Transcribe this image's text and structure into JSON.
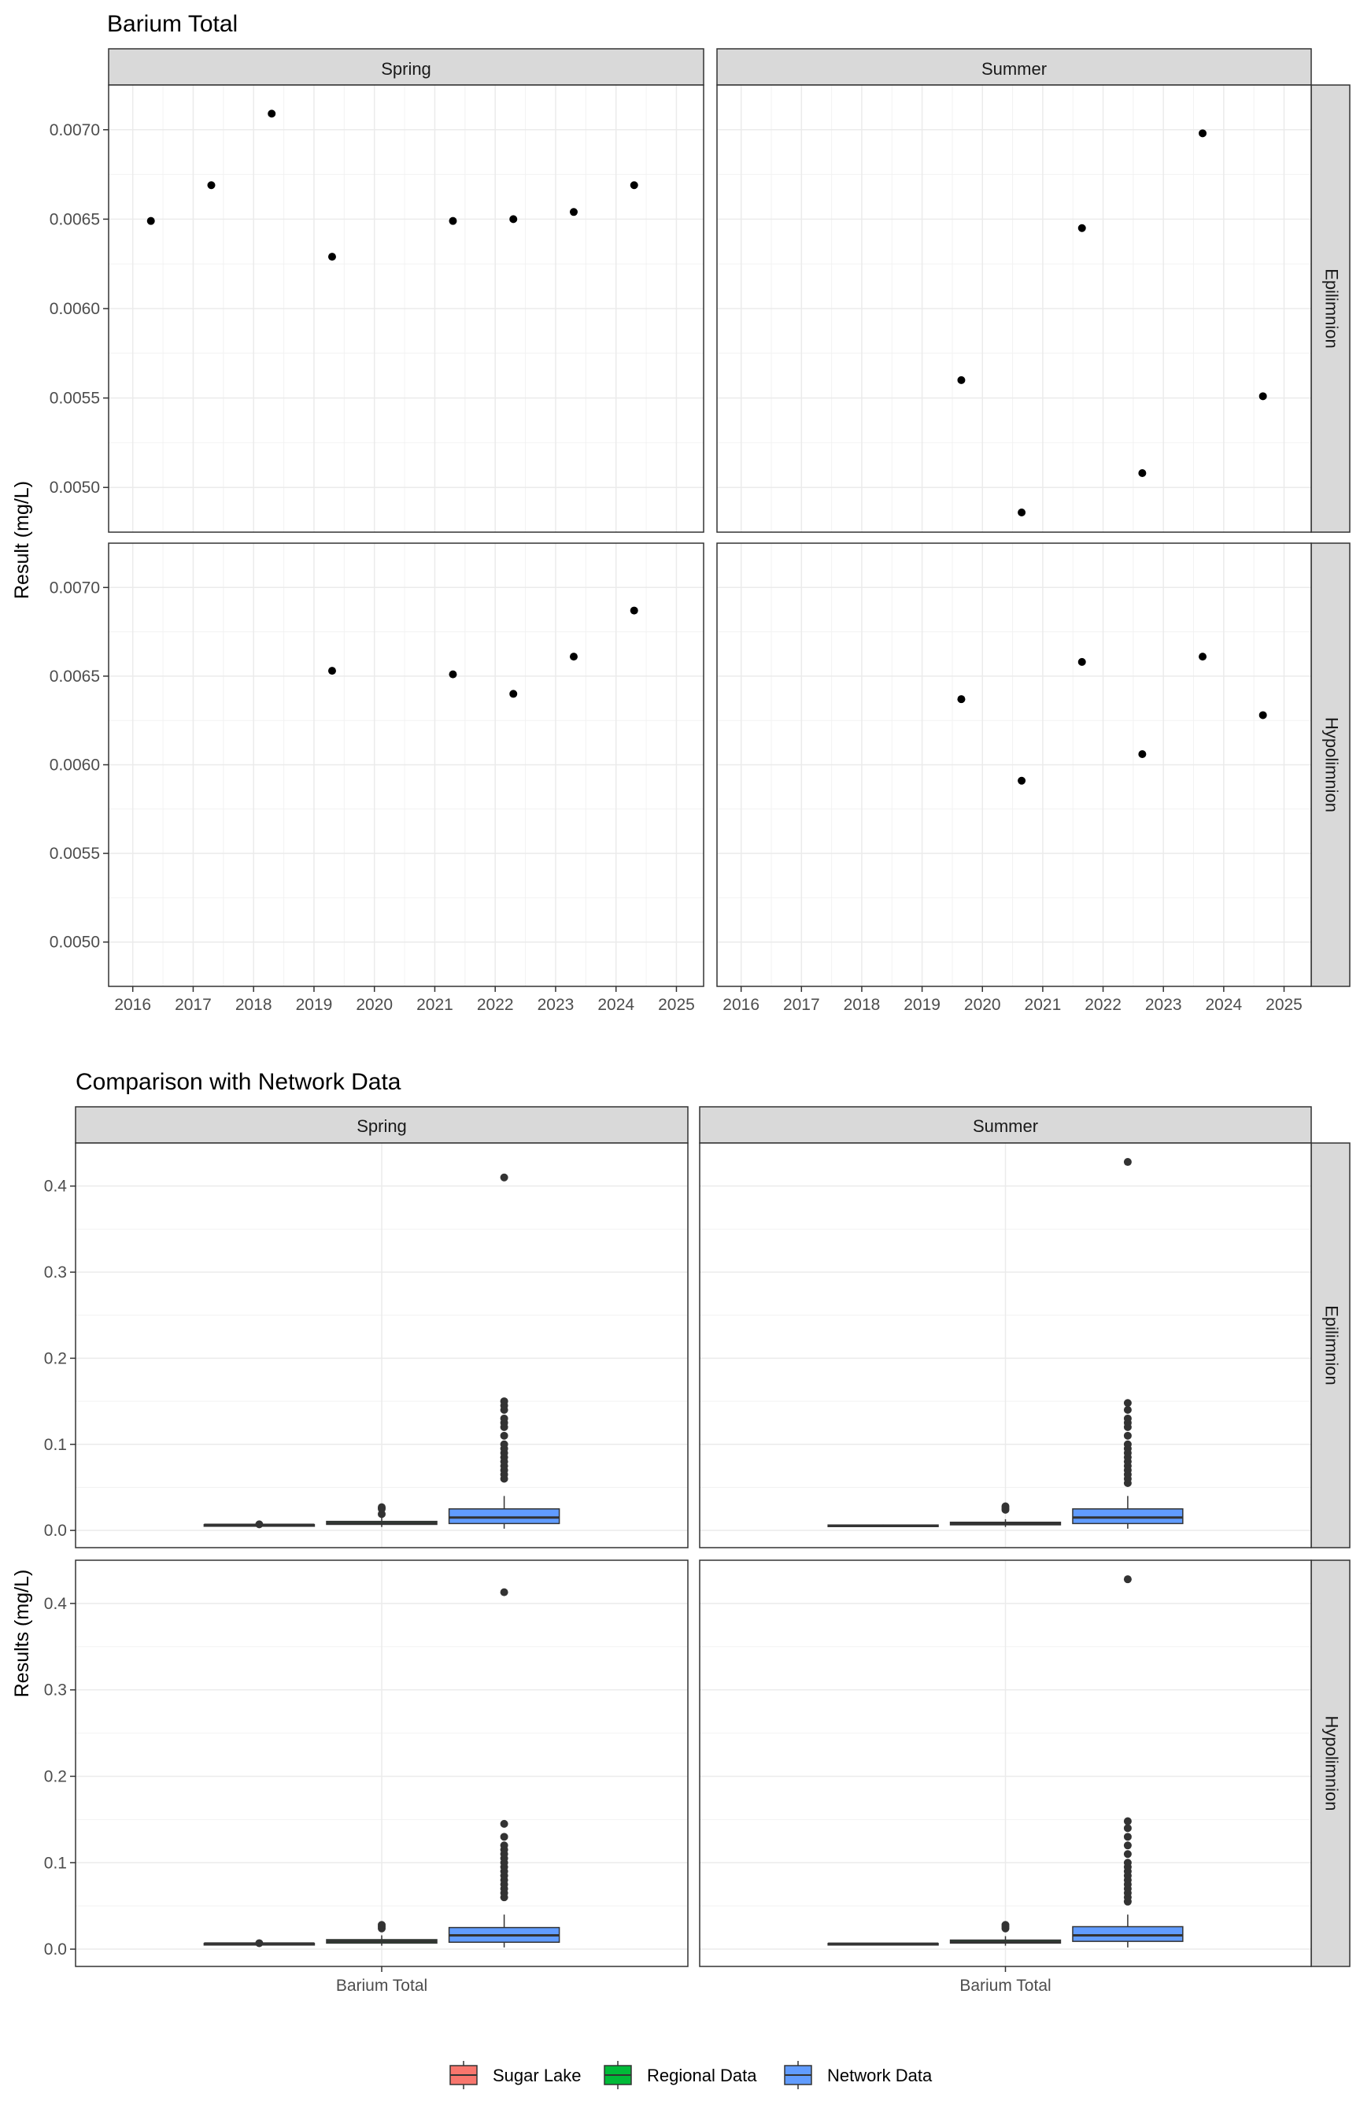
{
  "chart_data": [
    {
      "type": "scatter",
      "title": "Barium Total",
      "ylabel": "Result (mg/L)",
      "xlabel": "",
      "facet_cols": [
        "Spring",
        "Summer"
      ],
      "facet_rows": [
        "Epilimnion",
        "Hypolimnion"
      ],
      "xlim": [
        2015.6,
        2025.45
      ],
      "ylim": [
        0.00475,
        0.00725
      ],
      "x_ticks": [
        2016,
        2017,
        2018,
        2019,
        2020,
        2021,
        2022,
        2023,
        2024,
        2025
      ],
      "x_tick_labels": [
        "2016",
        "2017",
        "2018",
        "2019",
        "2020",
        "2021",
        "2022",
        "2023",
        "2024",
        "2025"
      ],
      "y_ticks": [
        0.005,
        0.0055,
        0.006,
        0.0065,
        0.007
      ],
      "y_tick_labels": [
        "0.0050",
        "0.0055",
        "0.0060",
        "0.0065",
        "0.0070"
      ],
      "grid": true,
      "panels": [
        {
          "col": "Spring",
          "row": "Epilimnion",
          "x": [
            2016.3,
            2017.3,
            2018.3,
            2019.3,
            2021.3,
            2022.3,
            2023.3,
            2024.3
          ],
          "y": [
            0.00649,
            0.00669,
            0.00709,
            0.00629,
            0.00649,
            0.0065,
            0.00654,
            0.00669
          ]
        },
        {
          "col": "Summer",
          "row": "Epilimnion",
          "x": [
            2019.65,
            2020.65,
            2021.65,
            2022.65,
            2023.65,
            2024.65
          ],
          "y": [
            0.0056,
            0.00486,
            0.00645,
            0.00508,
            0.00698,
            0.00551
          ]
        },
        {
          "col": "Spring",
          "row": "Hypolimnion",
          "x": [
            2019.3,
            2021.3,
            2022.3,
            2023.3,
            2024.3
          ],
          "y": [
            0.00653,
            0.00651,
            0.0064,
            0.00661,
            0.00687
          ]
        },
        {
          "col": "Summer",
          "row": "Hypolimnion",
          "x": [
            2019.65,
            2020.65,
            2021.65,
            2022.65,
            2023.65,
            2024.65
          ],
          "y": [
            0.00637,
            0.00591,
            0.00658,
            0.00606,
            0.00661,
            0.00628
          ]
        }
      ]
    },
    {
      "type": "box",
      "title": "Comparison with Network Data",
      "ylabel": "Results (mg/L)",
      "xlabel": "",
      "facet_cols": [
        "Spring",
        "Summer"
      ],
      "facet_rows": [
        "Epilimnion",
        "Hypolimnion"
      ],
      "categories": [
        "Barium Total"
      ],
      "ylim": [
        -0.02,
        0.45
      ],
      "y_ticks": [
        0.0,
        0.1,
        0.2,
        0.3,
        0.4
      ],
      "y_tick_labels": [
        "0.0",
        "0.1",
        "0.2",
        "0.3",
        "0.4"
      ],
      "grid": true,
      "legend_position": "bottom",
      "legend": [
        {
          "name": "Sugar Lake",
          "color": "#F8766D"
        },
        {
          "name": "Regional Data",
          "color": "#00BA38"
        },
        {
          "name": "Network Data",
          "color": "#619CFF"
        }
      ],
      "panels": [
        {
          "col": "Spring",
          "row": "Epilimnion",
          "groups": [
            {
              "name": "Sugar Lake",
              "min": 0.0063,
              "q1": 0.0064,
              "median": 0.0065,
              "q3": 0.0067,
              "max": 0.0071,
              "outliers": [
                0.0071
              ]
            },
            {
              "name": "Regional Data",
              "min": 0.004,
              "q1": 0.007,
              "median": 0.0085,
              "q3": 0.0105,
              "max": 0.015,
              "outliers": [
                0.019,
                0.025,
                0.027
              ]
            },
            {
              "name": "Network Data",
              "min": 0.002,
              "q1": 0.008,
              "median": 0.015,
              "q3": 0.025,
              "max": 0.04,
              "outliers": [
                0.06,
                0.065,
                0.07,
                0.075,
                0.08,
                0.085,
                0.09,
                0.095,
                0.1,
                0.11,
                0.12,
                0.125,
                0.13,
                0.14,
                0.145,
                0.15,
                0.41
              ]
            }
          ]
        },
        {
          "col": "Summer",
          "row": "Epilimnion",
          "groups": [
            {
              "name": "Sugar Lake",
              "min": 0.0049,
              "q1": 0.0051,
              "median": 0.0055,
              "q3": 0.0063,
              "max": 0.007,
              "outliers": []
            },
            {
              "name": "Regional Data",
              "min": 0.004,
              "q1": 0.0065,
              "median": 0.008,
              "q3": 0.0095,
              "max": 0.013,
              "outliers": [
                0.024,
                0.026,
                0.028
              ]
            },
            {
              "name": "Network Data",
              "min": 0.002,
              "q1": 0.008,
              "median": 0.015,
              "q3": 0.025,
              "max": 0.04,
              "outliers": [
                0.055,
                0.06,
                0.065,
                0.07,
                0.075,
                0.08,
                0.085,
                0.09,
                0.095,
                0.1,
                0.11,
                0.12,
                0.125,
                0.13,
                0.14,
                0.148,
                0.428
              ]
            }
          ]
        },
        {
          "col": "Spring",
          "row": "Hypolimnion",
          "groups": [
            {
              "name": "Sugar Lake",
              "min": 0.0064,
              "q1": 0.0065,
              "median": 0.0065,
              "q3": 0.0066,
              "max": 0.0069,
              "outliers": [
                0.0069
              ]
            },
            {
              "name": "Regional Data",
              "min": 0.004,
              "q1": 0.007,
              "median": 0.009,
              "q3": 0.011,
              "max": 0.016,
              "outliers": [
                0.024,
                0.026,
                0.028
              ]
            },
            {
              "name": "Network Data",
              "min": 0.002,
              "q1": 0.008,
              "median": 0.016,
              "q3": 0.025,
              "max": 0.04,
              "outliers": [
                0.06,
                0.065,
                0.07,
                0.075,
                0.08,
                0.085,
                0.09,
                0.095,
                0.1,
                0.105,
                0.11,
                0.115,
                0.12,
                0.13,
                0.145,
                0.413
              ]
            }
          ]
        },
        {
          "col": "Summer",
          "row": "Hypolimnion",
          "groups": [
            {
              "name": "Sugar Lake",
              "min": 0.0059,
              "q1": 0.0061,
              "median": 0.0063,
              "q3": 0.0066,
              "max": 0.0066,
              "outliers": []
            },
            {
              "name": "Regional Data",
              "min": 0.004,
              "q1": 0.007,
              "median": 0.0085,
              "q3": 0.0105,
              "max": 0.015,
              "outliers": [
                0.024,
                0.026,
                0.028
              ]
            },
            {
              "name": "Network Data",
              "min": 0.002,
              "q1": 0.009,
              "median": 0.016,
              "q3": 0.026,
              "max": 0.04,
              "outliers": [
                0.055,
                0.06,
                0.065,
                0.07,
                0.075,
                0.08,
                0.085,
                0.09,
                0.095,
                0.1,
                0.11,
                0.12,
                0.13,
                0.14,
                0.148,
                0.428
              ]
            }
          ]
        }
      ]
    }
  ]
}
